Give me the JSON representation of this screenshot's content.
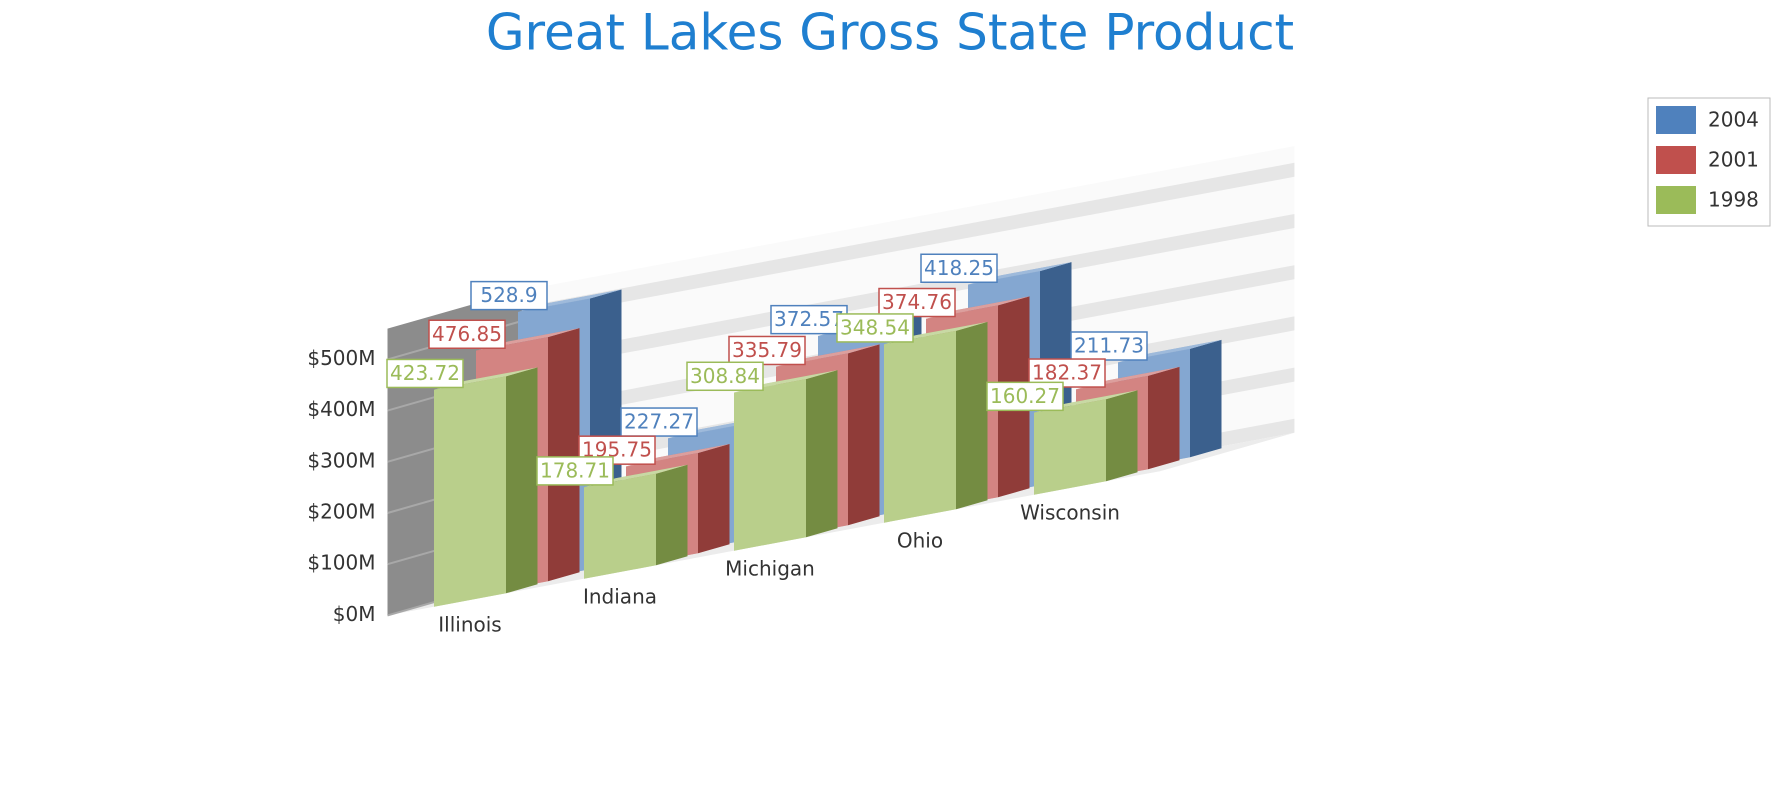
{
  "chart_data": {
    "type": "bar3d",
    "title": "Great Lakes Gross State Product",
    "categories": [
      "Illinois",
      "Indiana",
      "Michigan",
      "Ohio",
      "Wisconsin"
    ],
    "series": [
      {
        "name": "2004",
        "color": "#4f81bd",
        "values": [
          528.9,
          227.27,
          372.57,
          418.25,
          211.73
        ]
      },
      {
        "name": "2001",
        "color": "#c0504d",
        "values": [
          476.85,
          195.75,
          335.79,
          374.76,
          182.37
        ]
      },
      {
        "name": "1998",
        "color": "#9bbb59",
        "values": [
          423.72,
          178.71,
          308.84,
          348.54,
          160.27
        ]
      }
    ],
    "ylim": [
      0,
      560
    ],
    "yticks": [
      {
        "value": 0,
        "label": "$0M"
      },
      {
        "value": 100,
        "label": "$100M"
      },
      {
        "value": 200,
        "label": "$200M"
      },
      {
        "value": 300,
        "label": "$300M"
      },
      {
        "value": 400,
        "label": "$400M"
      },
      {
        "value": 500,
        "label": "$500M"
      }
    ],
    "grid": true,
    "legend": "top-right"
  }
}
